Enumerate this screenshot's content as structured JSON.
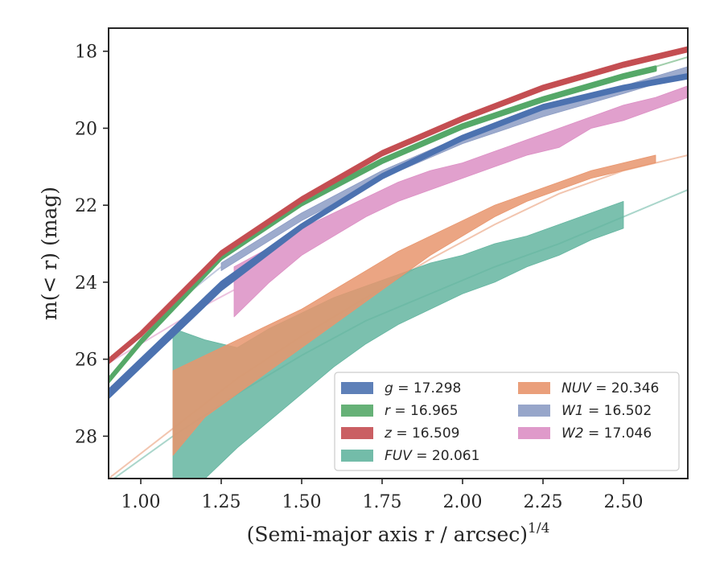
{
  "chart_data": {
    "type": "area",
    "xlabel": "(Semi-major axis r / arcsec)",
    "xlabel_sup": "1/4",
    "ylabel": "m(< r) (mag)",
    "xlim": [
      0.9,
      2.7
    ],
    "ylim": [
      29.1,
      17.4
    ],
    "y_inverted": true,
    "grid": false,
    "legend_placement": "lower-right",
    "x_ticks": [
      1.0,
      1.25,
      1.5,
      1.75,
      2.0,
      2.25,
      2.5
    ],
    "x_tick_labels": [
      "1.00",
      "1.25",
      "1.50",
      "1.75",
      "2.00",
      "2.25",
      "2.50"
    ],
    "y_ticks": [
      18,
      20,
      22,
      24,
      26,
      28
    ],
    "y_tick_labels": [
      "18",
      "20",
      "22",
      "24",
      "26",
      "28"
    ],
    "series": [
      {
        "name": "g = 17.298",
        "name_italic": "g",
        "name_value": "= 17.298",
        "color": "#4c72b0",
        "x": [
          0.9,
          1.0,
          1.25,
          1.5,
          1.75,
          2.0,
          2.25,
          2.5,
          2.7
        ],
        "y_low": [
          26.8,
          26.0,
          24.0,
          22.5,
          21.2,
          20.2,
          19.4,
          18.9,
          18.6
        ],
        "y_high": [
          27.0,
          26.2,
          24.2,
          22.6,
          21.3,
          20.3,
          19.5,
          19.0,
          18.7
        ],
        "model_x": [
          2.5,
          2.7
        ],
        "model_y": [
          18.9,
          18.6
        ]
      },
      {
        "name": "r = 16.965",
        "name_italic": "r",
        "name_value": "= 16.965",
        "color": "#55a868",
        "x": [
          0.9,
          1.0,
          1.25,
          1.5,
          1.75,
          2.0,
          2.25,
          2.5,
          2.6
        ],
        "y_low": [
          26.5,
          25.5,
          23.3,
          21.9,
          20.8,
          19.9,
          19.2,
          18.6,
          18.4
        ],
        "y_high": [
          26.6,
          25.6,
          23.4,
          22.0,
          20.9,
          20.0,
          19.3,
          18.7,
          18.5
        ],
        "model_x": [
          2.6,
          2.7
        ],
        "model_y": [
          18.4,
          18.15
        ]
      },
      {
        "name": "z = 16.509",
        "name_italic": "z",
        "name_value": "= 16.509",
        "color": "#c44e52",
        "x": [
          0.9,
          1.0,
          1.25,
          1.5,
          1.75,
          2.0,
          2.25,
          2.5,
          2.7
        ],
        "y_low": [
          26.0,
          25.3,
          23.2,
          21.8,
          20.6,
          19.7,
          18.9,
          18.3,
          17.9
        ],
        "y_high": [
          26.1,
          25.4,
          23.3,
          21.9,
          20.7,
          19.8,
          19.0,
          18.4,
          18.0
        ],
        "model_x": [],
        "model_y": []
      },
      {
        "name": "FUV = 20.061",
        "name_italic": "FUV",
        "name_value": "= 20.061",
        "color": "#64b5a0",
        "x": [
          1.1,
          1.2,
          1.3,
          1.4,
          1.5,
          1.6,
          1.7,
          1.8,
          1.9,
          2.0,
          2.1,
          2.2,
          2.3,
          2.4,
          2.5
        ],
        "y_low": [
          29.1,
          29.1,
          28.3,
          27.6,
          26.9,
          26.2,
          25.6,
          25.1,
          24.7,
          24.3,
          24.0,
          23.6,
          23.3,
          22.9,
          22.6
        ],
        "y_high": [
          25.2,
          25.5,
          25.7,
          25.2,
          24.8,
          24.4,
          24.1,
          23.8,
          23.5,
          23.3,
          23.0,
          22.8,
          22.5,
          22.2,
          21.9
        ],
        "model_x": [
          0.9,
          1.1,
          1.3,
          1.5,
          1.7,
          1.9,
          2.1,
          2.3,
          2.5,
          2.7
        ],
        "model_y": [
          29.2,
          28.0,
          26.9,
          25.9,
          25.0,
          24.3,
          23.6,
          23.0,
          22.3,
          21.6
        ]
      },
      {
        "name": "NUV = 20.346",
        "name_italic": "NUV",
        "name_value": "= 20.346",
        "color": "#e8956d",
        "x": [
          1.1,
          1.2,
          1.3,
          1.4,
          1.5,
          1.6,
          1.7,
          1.8,
          1.9,
          2.0,
          2.1,
          2.2,
          2.3,
          2.4,
          2.5,
          2.6
        ],
        "y_low": [
          28.5,
          27.5,
          26.9,
          26.3,
          25.7,
          25.1,
          24.5,
          23.9,
          23.3,
          22.8,
          22.3,
          21.9,
          21.6,
          21.3,
          21.1,
          20.9
        ],
        "y_high": [
          26.3,
          25.9,
          25.5,
          25.1,
          24.7,
          24.2,
          23.7,
          23.2,
          22.8,
          22.4,
          22.0,
          21.7,
          21.4,
          21.1,
          20.9,
          20.7
        ],
        "model_x": [
          0.9,
          1.1,
          1.3,
          1.5,
          1.7,
          1.9,
          2.1,
          2.3,
          2.5,
          2.7
        ],
        "model_y": [
          29.1,
          27.8,
          26.5,
          25.4,
          24.4,
          23.4,
          22.5,
          21.7,
          21.1,
          20.7
        ]
      },
      {
        "name": "W1 = 16.502",
        "name_italic": "W1",
        "name_value": "= 16.502",
        "color": "#8c9cc4",
        "x": [
          1.25,
          1.5,
          1.75,
          2.0,
          2.25,
          2.5,
          2.7
        ],
        "y_low": [
          23.7,
          22.4,
          21.3,
          20.4,
          19.7,
          19.1,
          18.6
        ],
        "y_high": [
          23.5,
          22.2,
          21.1,
          20.2,
          19.5,
          18.9,
          18.4
        ],
        "model_x": [
          0.9,
          1.0,
          1.1,
          1.25
        ],
        "model_y": [
          26.1,
          25.4,
          24.6,
          23.6
        ]
      },
      {
        "name": "W2 = 17.046",
        "name_italic": "W2",
        "name_value": "= 17.046",
        "color": "#dc8fc4",
        "x": [
          1.29,
          1.4,
          1.5,
          1.6,
          1.7,
          1.8,
          1.9,
          2.0,
          2.1,
          2.2,
          2.3,
          2.4,
          2.5,
          2.6,
          2.7
        ],
        "y_low": [
          24.9,
          24.0,
          23.3,
          22.8,
          22.3,
          21.9,
          21.6,
          21.3,
          21.0,
          20.7,
          20.5,
          20.0,
          19.8,
          19.5,
          19.2
        ],
        "y_high": [
          23.6,
          23.1,
          22.6,
          22.2,
          21.8,
          21.4,
          21.1,
          20.9,
          20.6,
          20.3,
          20.0,
          19.7,
          19.4,
          19.2,
          18.9
        ],
        "model_x": [
          0.9,
          1.0,
          1.1,
          1.2,
          1.29
        ],
        "model_y": [
          26.1,
          25.6,
          25.1,
          24.6,
          24.2
        ]
      }
    ]
  }
}
